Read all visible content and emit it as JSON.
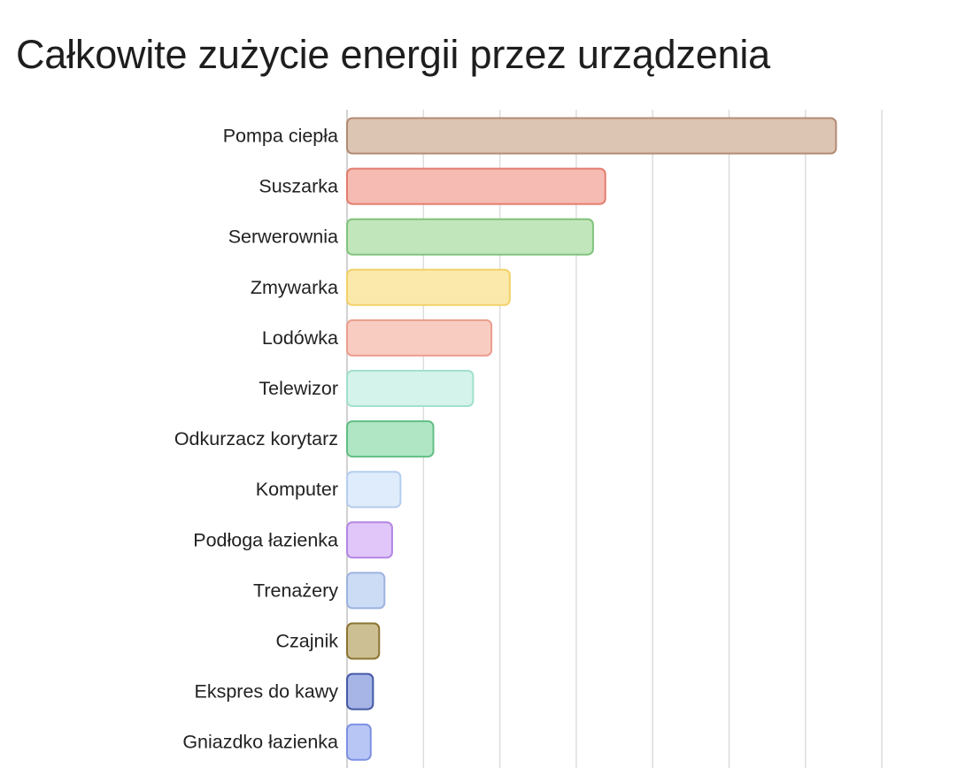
{
  "title": "Całkowite zużycie energii przez urządzenia",
  "chart_data": {
    "type": "bar",
    "orientation": "horizontal",
    "title": "Całkowite zużycie energii przez urządzenia",
    "xlabel": "",
    "ylabel": "",
    "grid": true,
    "xlim": [
      0,
      7000
    ],
    "categories": [
      "Pompa ciepła",
      "Suszarka",
      "Serwerownia",
      "Zmywarka",
      "Lodówka",
      "Telewizor",
      "Odkurzacz korytarz",
      "Komputer",
      "Podłoga łazienka",
      "Trenażery",
      "Czajnik",
      "Ekspres do kawy",
      "Gniazdko łazienka"
    ],
    "values": [
      6400,
      3380,
      3220,
      2130,
      1890,
      1650,
      1130,
      700,
      590,
      490,
      420,
      340,
      310
    ],
    "colors": [
      {
        "fill": "#dcc5b3",
        "stroke": "#b38b74"
      },
      {
        "fill": "#f6bcb3",
        "stroke": "#e27d6e"
      },
      {
        "fill": "#c2e6bb",
        "stroke": "#80c47c"
      },
      {
        "fill": "#fae9aa",
        "stroke": "#f3d168"
      },
      {
        "fill": "#f9ccc2",
        "stroke": "#ea9e8e"
      },
      {
        "fill": "#d3f3eb",
        "stroke": "#a3e0cc"
      },
      {
        "fill": "#b1e6c5",
        "stroke": "#62be85"
      },
      {
        "fill": "#dfecfb",
        "stroke": "#b5cdee"
      },
      {
        "fill": "#e1c6f9",
        "stroke": "#b287e3"
      },
      {
        "fill": "#cddcf5",
        "stroke": "#9db3df"
      },
      {
        "fill": "#cbbf93",
        "stroke": "#8d7433"
      },
      {
        "fill": "#a6b4e6",
        "stroke": "#4559a6"
      },
      {
        "fill": "#b8c6f6",
        "stroke": "#7d91e3"
      }
    ]
  }
}
